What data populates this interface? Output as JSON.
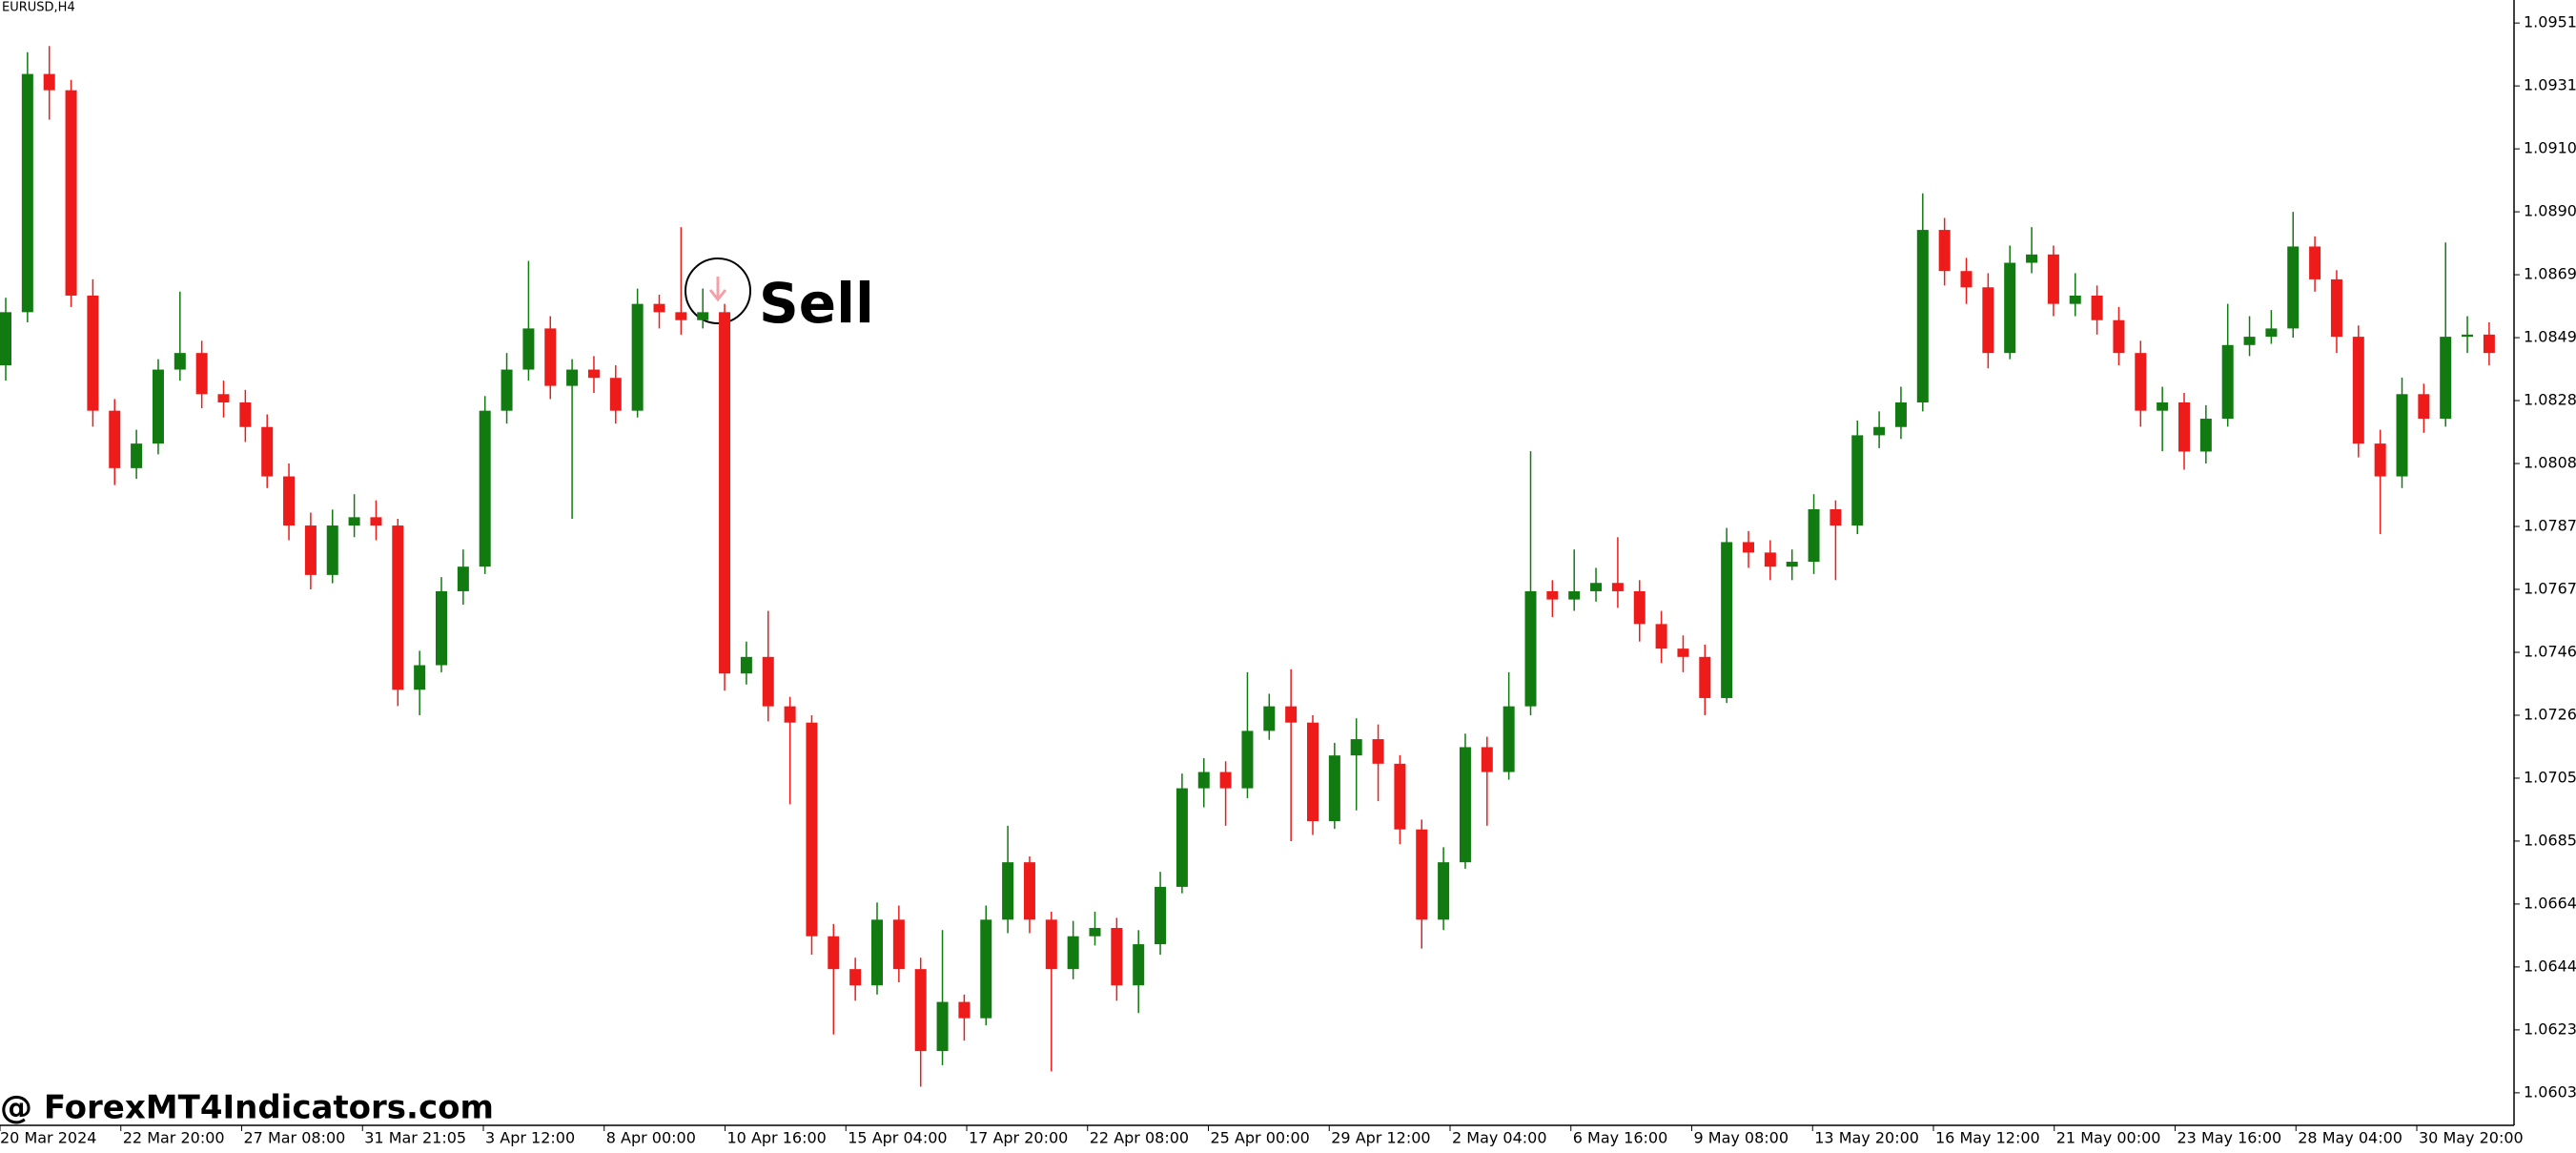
{
  "chart_data": {
    "type": "candlestick",
    "title": "EURUSD,H4",
    "annotation": "Sell",
    "watermark": "@ ForexMT4Indicators.com",
    "up_color": "#117a11",
    "down_color": "#ee1b1b",
    "ylim": [
      1.05924,
      1.0959
    ],
    "yticks": [
      1.09515,
      {
        "value": 1.0931,
        "label": "1.09310"
      },
      1.09105,
      {
        "value": 1.089,
        "label": "1.08900"
      },
      1.08695,
      {
        "value": 1.0849,
        "label": "1.08490"
      },
      1.08285,
      {
        "value": 1.0808,
        "label": "1.08080"
      },
      1.07875,
      {
        "value": 1.0767,
        "label": "1.07670"
      },
      1.07465,
      {
        "value": 1.0726,
        "label": "1.07260"
      },
      1.07055,
      {
        "value": 1.0685,
        "label": "1.06850"
      },
      1.06645,
      {
        "value": 1.0644,
        "label": "1.06440"
      },
      1.06235,
      {
        "value": 1.0603,
        "label": "1.06030"
      }
    ],
    "x_labels": [
      "20 Mar 2024",
      "22 Mar 20:00",
      "27 Mar 08:00",
      "31 Mar 21:05",
      "3 Apr 12:00",
      "8 Apr 00:00",
      "10 Apr 16:00",
      "15 Apr 04:00",
      "17 Apr 20:00",
      "22 Apr 08:00",
      "25 Apr 00:00",
      "29 Apr 12:00",
      "2 May 04:00",
      "6 May 16:00",
      "9 May 08:00",
      "13 May 20:00",
      "16 May 12:00",
      "21 May 00:00",
      "23 May 16:00",
      "28 May 04:00",
      "30 May 20:00"
    ],
    "open": [
      1.084,
      1.08573,
      1.09349,
      1.09296,
      1.08627,
      1.08252,
      1.08065,
      1.08145,
      1.08386,
      1.0844,
      1.08306,
      1.08279,
      1.08199,
      1.08038,
      1.07878,
      1.07717,
      1.07878,
      1.07905,
      1.07878,
      1.07343,
      1.07423,
      1.07664,
      1.07744,
      1.08252,
      1.08386,
      1.0852,
      1.08333,
      1.08386,
      1.08359,
      1.08252,
      1.086,
      1.08573,
      1.08547,
      1.08573,
      1.07396,
      1.0745,
      1.07289,
      1.07236,
      1.0654,
      1.06433,
      1.0638,
      1.06594,
      1.06433,
      1.06166,
      1.06326,
      1.06273,
      1.06594,
      1.06781,
      1.06594,
      1.06433,
      1.0654,
      1.06567,
      1.0638,
      1.06514,
      1.06701,
      1.07022,
      1.07075,
      1.07022,
      1.07209,
      1.07289,
      1.07236,
      1.06915,
      1.07129,
      1.07182,
      1.07102,
      1.06888,
      1.06594,
      1.06781,
      1.07156,
      1.07075,
      1.07289,
      1.07664,
      1.07637,
      1.07664,
      1.07691,
      1.07664,
      1.07557,
      1.07477,
      1.0745,
      1.07316,
      1.07824,
      1.0779,
      1.07744,
      1.0776,
      1.07931,
      1.07878,
      1.08172,
      1.08199,
      1.08279,
      1.08841,
      1.08707,
      1.08654,
      1.0844,
      1.08734,
      1.08761,
      1.086,
      1.08627,
      1.08547,
      1.0844,
      1.08252,
      1.08279,
      1.08119,
      1.08226,
      1.08466,
      1.08493,
      1.0852,
      1.08787,
      1.0868,
      1.08493,
      1.08145,
      1.08038,
      1.08306,
      1.08226,
      1.08493,
      1.085
    ],
    "high": [
      1.0862,
      1.0942,
      1.0944,
      1.0933,
      1.0868,
      1.0829,
      1.0819,
      1.0842,
      1.0864,
      1.0848,
      1.0835,
      1.0832,
      1.0824,
      1.0808,
      1.0792,
      1.0793,
      1.0798,
      1.0796,
      1.079,
      1.0747,
      1.0771,
      1.078,
      1.083,
      1.0844,
      1.0874,
      1.0856,
      1.0842,
      1.0843,
      1.084,
      1.0865,
      1.0863,
      1.0885,
      1.0865,
      1.086,
      1.075,
      1.076,
      1.0732,
      1.0726,
      1.0658,
      1.0647,
      1.0665,
      1.0664,
      1.0647,
      1.0656,
      1.0635,
      1.0664,
      1.069,
      1.068,
      1.0662,
      1.0659,
      1.0662,
      1.066,
      1.0656,
      1.0675,
      1.0707,
      1.0712,
      1.0711,
      1.074,
      1.0733,
      1.0741,
      1.0726,
      1.0717,
      1.0725,
      1.0723,
      1.0713,
      1.0692,
      1.0683,
      1.072,
      1.0719,
      1.074,
      1.0812,
      1.077,
      1.078,
      1.0774,
      1.0784,
      1.077,
      1.076,
      1.0752,
      1.0749,
      1.0787,
      1.0786,
      1.0783,
      1.078,
      1.0798,
      1.0796,
      1.0822,
      1.0825,
      1.0833,
      1.0896,
      1.0888,
      1.0875,
      1.087,
      1.0879,
      1.0885,
      1.0879,
      1.087,
      1.0866,
      1.0859,
      1.0848,
      1.0833,
      1.0831,
      1.0827,
      1.086,
      1.0856,
      1.0858,
      1.089,
      1.0882,
      1.0871,
      1.0853,
      1.0819,
      1.0836,
      1.0834,
      1.088,
      1.0856,
      1.0854
    ],
    "low": [
      1.0835,
      1.0854,
      1.092,
      1.0859,
      1.082,
      1.0801,
      1.0803,
      1.0811,
      1.0835,
      1.0826,
      1.0823,
      1.0815,
      1.08,
      1.0783,
      1.0767,
      1.0769,
      1.0784,
      1.0783,
      1.0729,
      1.0726,
      1.074,
      1.0762,
      1.0772,
      1.0821,
      1.0835,
      1.0829,
      1.079,
      1.0831,
      1.0821,
      1.0823,
      1.0852,
      1.085,
      1.0852,
      1.0734,
      1.0736,
      1.0724,
      1.0697,
      1.0648,
      1.0622,
      1.0633,
      1.0635,
      1.0639,
      1.0605,
      1.0612,
      1.062,
      1.0625,
      1.0655,
      1.0655,
      1.061,
      1.064,
      1.0651,
      1.0633,
      1.0629,
      1.0648,
      1.0668,
      1.0696,
      1.069,
      1.0699,
      1.0718,
      1.0685,
      1.0687,
      1.0689,
      1.0695,
      1.0698,
      1.0684,
      1.065,
      1.0656,
      1.0676,
      1.069,
      1.0705,
      1.0726,
      1.0758,
      1.076,
      1.0763,
      1.0761,
      1.075,
      1.0743,
      1.074,
      1.0726,
      1.073,
      1.0774,
      1.077,
      1.077,
      1.0772,
      1.077,
      1.0785,
      1.0813,
      1.0816,
      1.0825,
      1.0866,
      1.086,
      1.0839,
      1.0842,
      1.087,
      1.0856,
      1.0856,
      1.085,
      1.084,
      1.082,
      1.0812,
      1.0806,
      1.0808,
      1.082,
      1.0843,
      1.0847,
      1.0849,
      1.0864,
      1.0844,
      1.081,
      1.0785,
      1.08,
      1.0818,
      1.082,
      1.0844,
      1.084
    ],
    "close": [
      1.08573,
      1.09349,
      1.09296,
      1.08627,
      1.08252,
      1.08065,
      1.08145,
      1.08386,
      1.0844,
      1.08306,
      1.08279,
      1.08199,
      1.08038,
      1.07878,
      1.07717,
      1.07878,
      1.07905,
      1.07878,
      1.07343,
      1.07423,
      1.07664,
      1.07744,
      1.08252,
      1.08386,
      1.0852,
      1.08333,
      1.08386,
      1.08359,
      1.08252,
      1.086,
      1.08573,
      1.08547,
      1.08573,
      1.07396,
      1.0745,
      1.07289,
      1.07236,
      1.0654,
      1.06433,
      1.0638,
      1.06594,
      1.06433,
      1.06166,
      1.06326,
      1.06273,
      1.06594,
      1.06781,
      1.06594,
      1.06433,
      1.0654,
      1.06567,
      1.0638,
      1.06514,
      1.06701,
      1.07022,
      1.07075,
      1.07022,
      1.07209,
      1.07289,
      1.07236,
      1.06915,
      1.07129,
      1.07182,
      1.07102,
      1.06888,
      1.06594,
      1.06781,
      1.07156,
      1.07075,
      1.07289,
      1.07664,
      1.07637,
      1.07664,
      1.07691,
      1.07664,
      1.07557,
      1.07477,
      1.0745,
      1.07316,
      1.07824,
      1.0779,
      1.07744,
      1.0776,
      1.07931,
      1.07878,
      1.08172,
      1.08199,
      1.08279,
      1.08841,
      1.08707,
      1.08654,
      1.0844,
      1.08734,
      1.08761,
      1.086,
      1.08627,
      1.08547,
      1.0844,
      1.08252,
      1.08279,
      1.08119,
      1.08226,
      1.08466,
      1.08493,
      1.0852,
      1.08787,
      1.0868,
      1.08493,
      1.08145,
      1.08038,
      1.08306,
      1.08226,
      1.08493,
      1.085,
      1.0844
    ]
  }
}
